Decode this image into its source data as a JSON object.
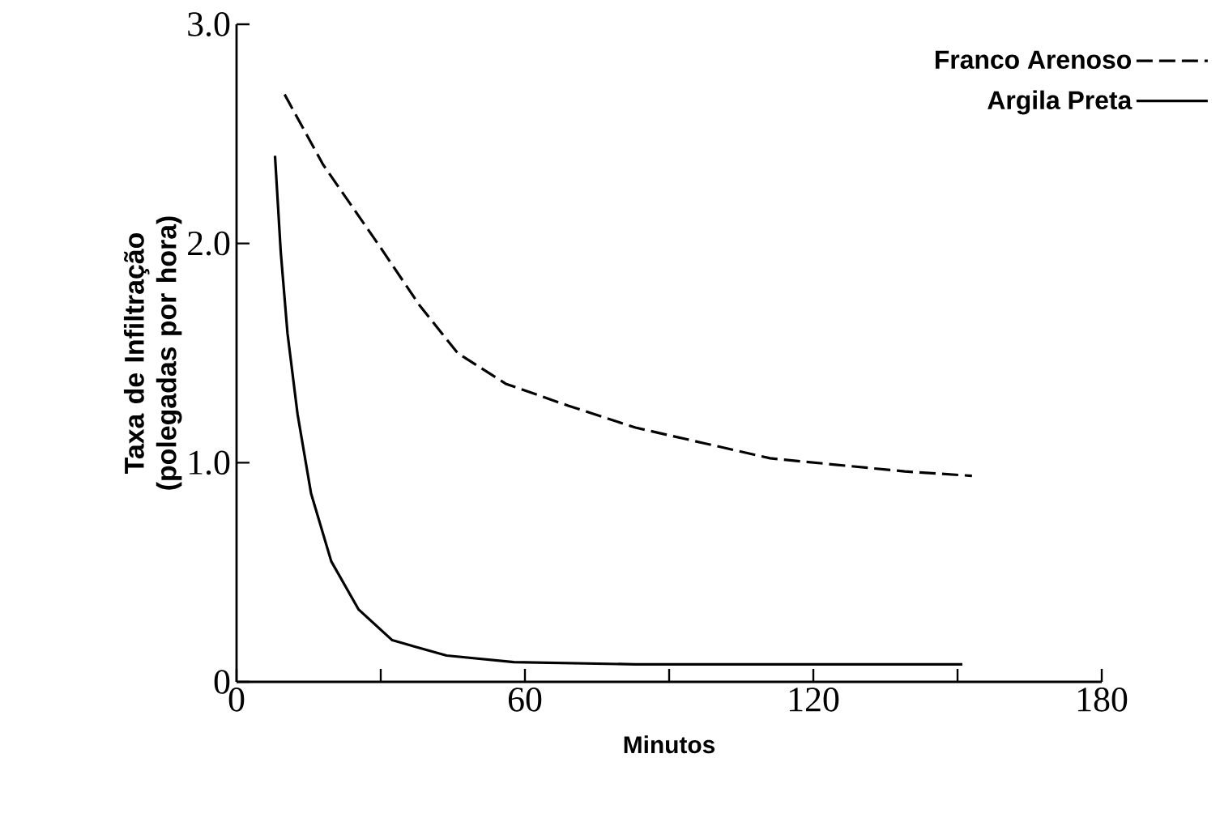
{
  "chart_data": {
    "type": "line",
    "xlabel": "Minutos",
    "ylabel": "Taxa de Infiltração (polegadas por hora)",
    "xlim": [
      0,
      180
    ],
    "ylim": [
      0,
      3.0
    ],
    "xticks": [
      0,
      {
        "value": 30,
        "label": null
      },
      60,
      {
        "value": 90,
        "label": null
      },
      120,
      {
        "value": 150,
        "label": null
      },
      180
    ],
    "yticks": [
      0,
      {
        "value": 1.0,
        "label": "1.0"
      },
      {
        "value": 2.0,
        "label": "2.0"
      },
      {
        "value": 3.0,
        "label": "3.0"
      }
    ],
    "legend": "top right",
    "grid": false,
    "marker": "none",
    "series": [
      {
        "name": "Franco Arenoso",
        "color": "#000000",
        "line_style": "dashed",
        "x": [
          10,
          18,
          30,
          38,
          46,
          56,
          69,
          83,
          97,
          111,
          125,
          139,
          153
        ],
        "values": [
          2.68,
          2.36,
          1.98,
          1.72,
          1.5,
          1.36,
          1.26,
          1.16,
          1.09,
          1.02,
          0.99,
          0.96,
          0.94
        ]
      },
      {
        "name": "Argila Preta",
        "color": "#000000",
        "line_style": "solid",
        "x": [
          8,
          9.2,
          10.6,
          12.7,
          15.5,
          19.7,
          25.4,
          32.4,
          43.7,
          57.7,
          83,
          151
        ],
        "values": [
          2.4,
          1.96,
          1.59,
          1.22,
          0.86,
          0.55,
          0.33,
          0.19,
          0.12,
          0.09,
          0.08,
          0.08
        ]
      }
    ]
  }
}
